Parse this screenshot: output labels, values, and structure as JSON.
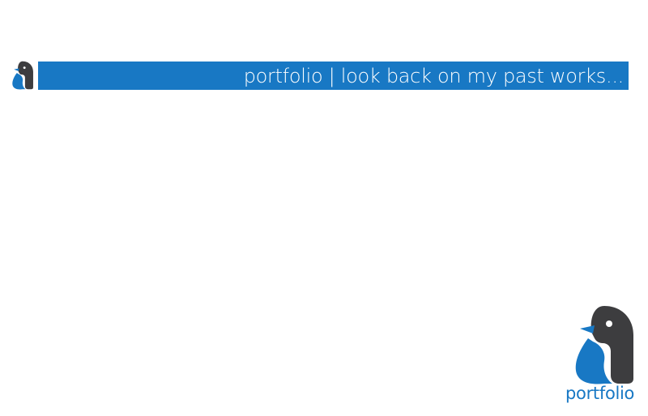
{
  "header": {
    "tagline": "portfolio | look back on my past works..."
  },
  "footer": {
    "brand_label": "portfolio"
  },
  "logo": {
    "icon": "penguin-letter-a-icon",
    "colors": {
      "blue": "#1878c4",
      "dark": "#3d3d3f",
      "eye": "#ffffff",
      "beak": "#1878c4"
    }
  },
  "colors": {
    "bar": "#1878c4",
    "bar_text": "#ffffff",
    "background": "#ffffff",
    "footer_text": "#1878c4"
  }
}
